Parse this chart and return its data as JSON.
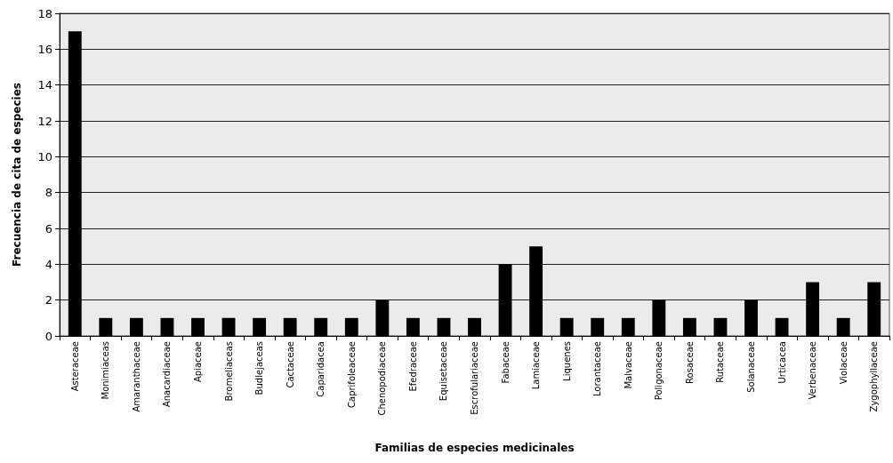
{
  "chart_data": {
    "type": "bar",
    "xlabel": "Familias de especies medicinales",
    "ylabel": "Frecuencia de cita de especies",
    "categories": [
      "Asteraceae",
      "Monimiaceas",
      "Amaranthaceae",
      "Anacardiaceae",
      "Apiaceae",
      "Bromeliaceas",
      "Budlejaceas",
      "Cactaceae",
      "Caparidacea",
      "Caprifoleaceae",
      "Chenopodiaceae",
      "Efedraceae",
      "Equisetaceae",
      "Escrofulariaceae",
      "Fabaceae",
      "Lamiaceae",
      "Liquenes",
      "Lorantaceae",
      "Malvaceae",
      "Poligonaceae",
      "Rosaceae",
      "Rutaceae",
      "Solanaceae",
      "Urticacea",
      "Verbenaceae",
      "Violaceae",
      "Zygophyllaceae"
    ],
    "values": [
      17,
      1,
      1,
      1,
      1,
      1,
      1,
      1,
      1,
      1,
      2,
      1,
      1,
      1,
      4,
      5,
      1,
      1,
      1,
      2,
      1,
      1,
      2,
      1,
      3,
      1,
      3
    ],
    "color": "#000000",
    "ylim": [
      0,
      18
    ],
    "yticks": [
      0,
      2,
      4,
      6,
      8,
      10,
      12,
      14,
      16,
      18
    ],
    "grid": "y"
  }
}
